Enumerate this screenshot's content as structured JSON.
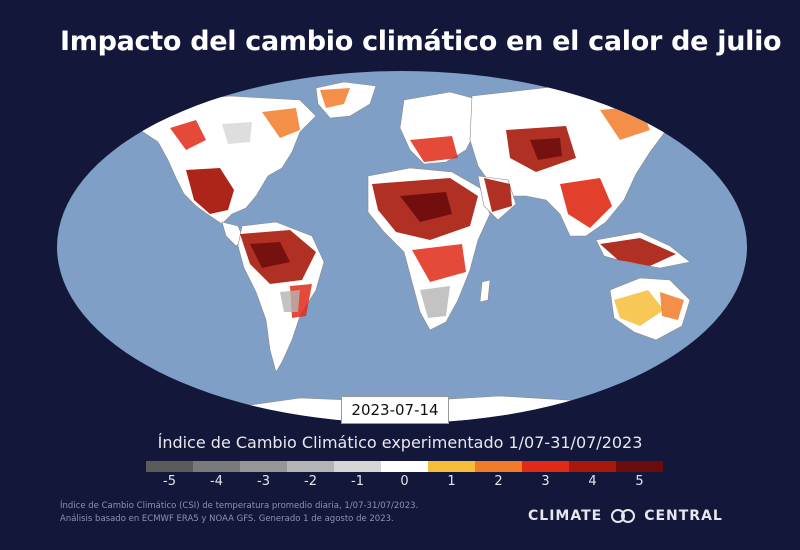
{
  "title": "Impacto del cambio climático en el calor de julio",
  "map": {
    "projection": "robinson",
    "ocean_color": "#7f9fc6",
    "land_neutral_color": "#ffffff",
    "date_label": "2023-07-14"
  },
  "legend": {
    "title": "Índice de Cambio Climático experimentado 1/07-31/07/2023",
    "ticks": [
      "-5",
      "-4",
      "-3",
      "-2",
      "-1",
      "0",
      "1",
      "2",
      "3",
      "4",
      "5"
    ],
    "colors": [
      "#5b5b5b",
      "#7a7a7a",
      "#969696",
      "#b4b4b4",
      "#d6d6d6",
      "#ffffff",
      "#f7be3a",
      "#f27b2a",
      "#e02a16",
      "#a8190c",
      "#6b0c0c"
    ]
  },
  "footnote": {
    "line1": "Índice de Cambio Climático (CSI) de temperatura promedio diaria, 1/07-31/07/2023.",
    "line2": "Análisis basado en ECMWF ERA5 y NOAA GFS. Generado 1 de agosto de 2023."
  },
  "brand": {
    "left": "CLIMATE",
    "right": "CENTRAL",
    "logo_icon": "climate-central-logo-icon"
  }
}
